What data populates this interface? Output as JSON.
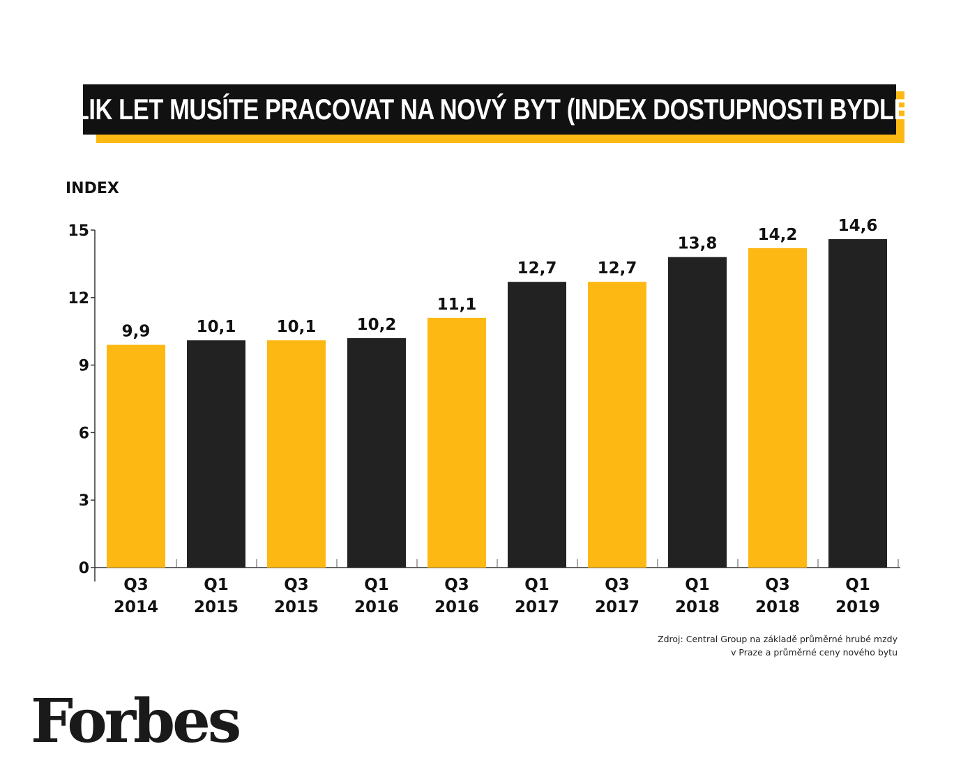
{
  "chart_data": {
    "type": "bar",
    "title": "KOLIK LET MUSÍTE PRACOVAT NA NOVÝ BYT (INDEX DOSTUPNOSTI BYDLENÍ)",
    "ylabel": "INDEX",
    "ylim": [
      0,
      15
    ],
    "yticks": [
      0,
      3,
      6,
      9,
      12,
      15
    ],
    "categories": [
      [
        "Q3",
        "2014"
      ],
      [
        "Q1",
        "2015"
      ],
      [
        "Q3",
        "2015"
      ],
      [
        "Q1",
        "2016"
      ],
      [
        "Q3",
        "2016"
      ],
      [
        "Q1",
        "2017"
      ],
      [
        "Q3",
        "2017"
      ],
      [
        "Q1",
        "2018"
      ],
      [
        "Q3",
        "2018"
      ],
      [
        "Q1",
        "2019"
      ]
    ],
    "values": [
      9.9,
      10.1,
      10.1,
      10.2,
      11.1,
      12.7,
      12.7,
      13.8,
      14.2,
      14.6
    ],
    "value_labels": [
      "9,9",
      "10,1",
      "10,1",
      "10,2",
      "11,1",
      "12,7",
      "12,7",
      "13,8",
      "14,2",
      "14,6"
    ],
    "bar_colors": [
      "#FDB813",
      "#222222",
      "#FDB813",
      "#222222",
      "#FDB813",
      "#222222",
      "#FDB813",
      "#222222",
      "#FDB813",
      "#222222"
    ],
    "grid": false
  },
  "source_lines": [
    "Zdroj: Central Group na základě průměrné hrubé mzdy",
    "v Praze a průměrné ceny nového bytu"
  ],
  "logo": "Forbes",
  "colors": {
    "accent": "#FDB813",
    "dark": "#222222",
    "title_bg": "#111111"
  }
}
